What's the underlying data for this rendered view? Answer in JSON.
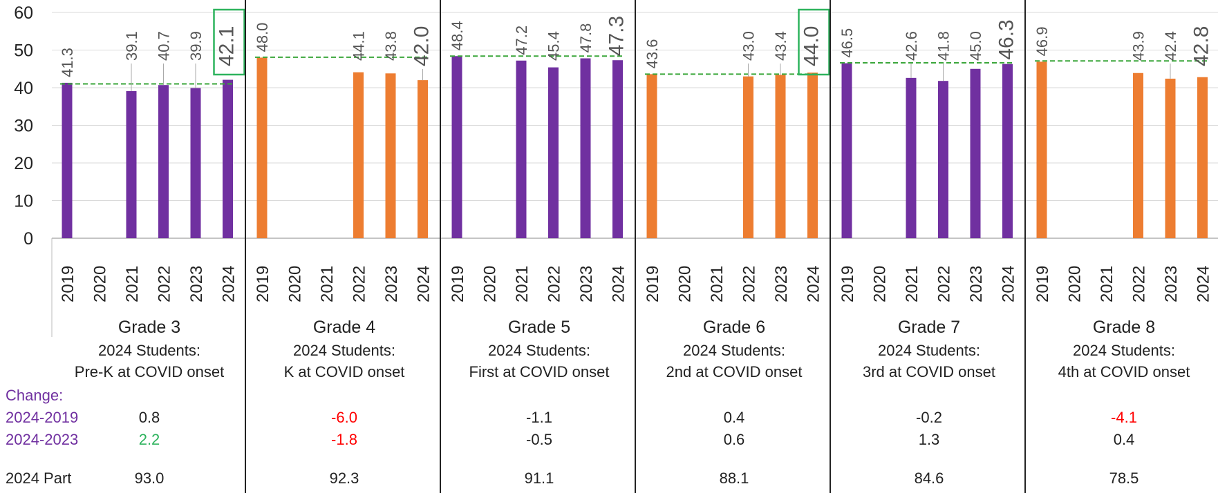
{
  "chart_data": {
    "type": "bar",
    "title": "",
    "ylim": [
      0,
      60
    ],
    "yticks": [
      0,
      10,
      20,
      30,
      40,
      50,
      60
    ],
    "grid": true,
    "years": [
      "2019",
      "2020",
      "2021",
      "2022",
      "2023",
      "2024"
    ],
    "colors": {
      "purple": "#7030a0",
      "orange": "#ed7d31",
      "trend": "#3aa63a",
      "highlight": "#2db35d",
      "negative": "#ff0000",
      "positive": "#2db35d"
    },
    "groups": [
      {
        "grade": "Grade 3",
        "caption1": "2024 Students:",
        "caption2": "Pre-K at COVID onset",
        "color": "purple",
        "values": [
          41.3,
          null,
          39.1,
          40.7,
          39.9,
          42.1
        ],
        "labels": [
          "41.3",
          "",
          "39.1",
          "40.7",
          "39.9",
          "42.1"
        ],
        "baseline": 41.0,
        "highlight": true,
        "change_2019": "0.8",
        "change_2019_color": "black",
        "change_2023": "2.2",
        "change_2023_color": "positive",
        "part": "93.0"
      },
      {
        "grade": "Grade 4",
        "caption1": "2024 Students:",
        "caption2": "K at COVID onset",
        "color": "orange",
        "values": [
          48.0,
          null,
          null,
          44.1,
          43.8,
          42.0
        ],
        "labels": [
          "48.0",
          "",
          "",
          "44.1",
          "43.8",
          "42.0"
        ],
        "baseline": 48.1,
        "highlight": false,
        "change_2019": "-6.0",
        "change_2019_color": "negative",
        "change_2023": "-1.8",
        "change_2023_color": "negative",
        "part": "92.3"
      },
      {
        "grade": "Grade 5",
        "caption1": "2024 Students:",
        "caption2": "First at COVID onset",
        "color": "purple",
        "values": [
          48.4,
          null,
          47.2,
          45.4,
          47.8,
          47.3
        ],
        "labels": [
          "48.4",
          "",
          "47.2",
          "45.4",
          "47.8",
          "47.3"
        ],
        "baseline": 48.4,
        "highlight": false,
        "change_2019": "-1.1",
        "change_2019_color": "black",
        "change_2023": "-0.5",
        "change_2023_color": "black",
        "part": "91.1"
      },
      {
        "grade": "Grade 6",
        "caption1": "2024 Students:",
        "caption2": "2nd at COVID onset",
        "color": "orange",
        "values": [
          43.6,
          null,
          null,
          43.0,
          43.4,
          44.0
        ],
        "labels": [
          "43.6",
          "",
          "",
          "43.0",
          "43.4",
          "44.0"
        ],
        "baseline": 43.6,
        "highlight": true,
        "change_2019": "0.4",
        "change_2019_color": "black",
        "change_2023": "0.6",
        "change_2023_color": "black",
        "part": "88.1"
      },
      {
        "grade": "Grade 7",
        "caption1": "2024 Students:",
        "caption2": "3rd at COVID onset",
        "color": "purple",
        "values": [
          46.5,
          null,
          42.6,
          41.8,
          45.0,
          46.3
        ],
        "labels": [
          "46.5",
          "",
          "42.6",
          "41.8",
          "45.0",
          "46.3"
        ],
        "baseline": 46.6,
        "highlight": false,
        "change_2019": "-0.2",
        "change_2019_color": "black",
        "change_2023": "1.3",
        "change_2023_color": "black",
        "part": "84.6"
      },
      {
        "grade": "Grade 8",
        "caption1": "2024 Students:",
        "caption2": "4th at COVID onset",
        "color": "orange",
        "values": [
          46.9,
          null,
          null,
          43.9,
          42.4,
          42.8
        ],
        "labels": [
          "46.9",
          "",
          "",
          "43.9",
          "42.4",
          "42.8"
        ],
        "baseline": 47.1,
        "highlight": false,
        "change_2019": "-4.1",
        "change_2019_color": "negative",
        "change_2023": "0.4",
        "change_2023_color": "black",
        "part": "78.5"
      }
    ]
  },
  "rows": {
    "change_label": "Change:",
    "change_2019_label": "2024-2019",
    "change_2023_label": "2024-2023",
    "part_label": "2024 Part"
  }
}
